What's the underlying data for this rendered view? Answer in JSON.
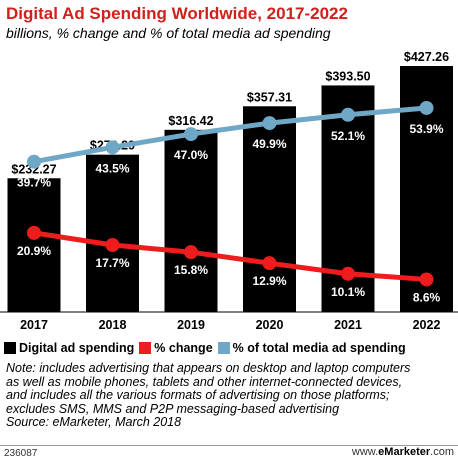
{
  "title": "Digital Ad Spending Worldwide, 2017-2022",
  "subtitle": "billions, % change and % of total media ad spending",
  "legend": {
    "items": [
      {
        "label": "Digital ad spending",
        "color": "#000000"
      },
      {
        "label": "% change",
        "color": "#ee1c1c"
      },
      {
        "label": "% of total media ad spending",
        "color": "#6fa8c6"
      }
    ]
  },
  "chart_data": {
    "type": "bar",
    "categories": [
      "2017",
      "2018",
      "2019",
      "2020",
      "2021",
      "2022"
    ],
    "series": [
      {
        "name": "Digital ad spending",
        "type": "bar",
        "values": [
          232.27,
          273.29,
          316.42,
          357.31,
          393.5,
          427.26
        ],
        "labels": [
          "$232.27",
          "$273.29",
          "$316.42",
          "$357.31",
          "$393.50",
          "$427.26"
        ],
        "color": "#000000"
      },
      {
        "name": "% change",
        "type": "line",
        "values": [
          20.9,
          17.7,
          15.8,
          12.9,
          10.1,
          8.6
        ],
        "labels": [
          "20.9%",
          "17.7%",
          "15.8%",
          "12.9%",
          "10.1%",
          "8.6%"
        ],
        "color": "#ee1c1c"
      },
      {
        "name": "% of total media ad spending",
        "type": "line",
        "values": [
          39.7,
          43.5,
          47.0,
          49.9,
          52.1,
          53.9
        ],
        "labels": [
          "39.7%",
          "43.5%",
          "47.0%",
          "49.9%",
          "52.1%",
          "53.9%"
        ],
        "color": "#6fa8c6"
      }
    ],
    "title": "Digital Ad Spending Worldwide, 2017-2022",
    "subtitle": "billions, % change and % of total media ad spending",
    "legend_position": "bottom",
    "grid": false
  },
  "note": {
    "lines": [
      "Note: includes advertising that appears on desktop and laptop computers",
      "as well as mobile phones, tablets and other internet-connected devices,",
      "and includes all the various formats of advertising on those platforms;",
      "excludes SMS, MMS and P2P messaging-based advertising",
      "Source: eMarketer, March 2018"
    ]
  },
  "footer": {
    "id": "236087",
    "brand_prefix": "www.",
    "brand_name": "eMarketer",
    "brand_suffix": ".com"
  }
}
